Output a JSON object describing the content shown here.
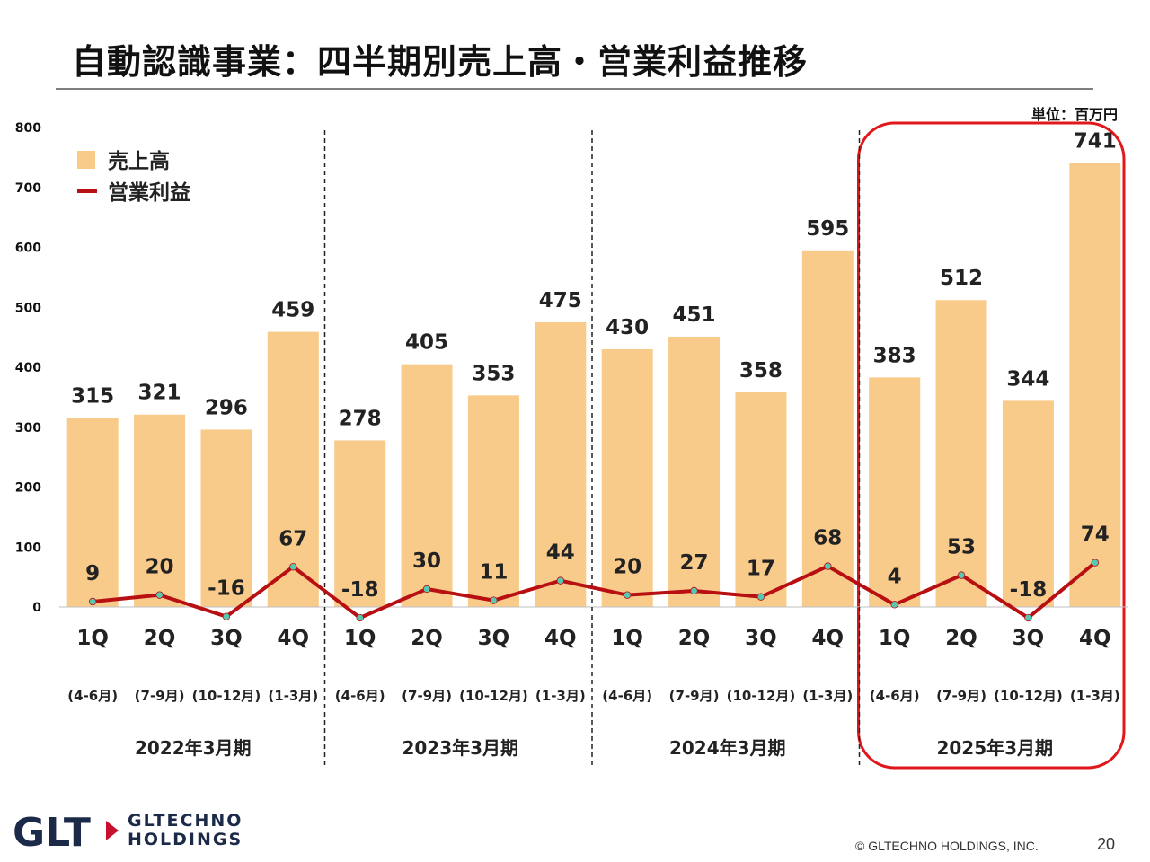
{
  "header": {
    "title": "自動認識事業：四半期別売上高・営業利益推移",
    "unit": "単位：百万円"
  },
  "footer": {
    "logo_mark": "GLT",
    "logo_line1": "GLTECHNO",
    "logo_line2": "HOLDINGS",
    "copyright": "© GLTECHNO HOLDINGS, INC.",
    "page_number": "20"
  },
  "colors": {
    "bar": "#f9cb8b",
    "line": "#b80f12",
    "marker": "#59c8b3",
    "highlight": "#e0181b",
    "logo_navy": "#1c2a4a",
    "logo_red": "#c8102e"
  },
  "chart_data": {
    "type": "bar",
    "title": "",
    "ylim": [
      0,
      800
    ],
    "yticks": [
      0,
      100,
      200,
      300,
      400,
      500,
      600,
      700,
      800
    ],
    "grid": false,
    "legend_position": "top-left",
    "categories": [
      "1Q",
      "2Q",
      "3Q",
      "4Q",
      "1Q",
      "2Q",
      "3Q",
      "4Q",
      "1Q",
      "2Q",
      "3Q",
      "4Q",
      "1Q",
      "2Q",
      "3Q",
      "4Q"
    ],
    "sub_labels": [
      "(4-6月)",
      "(7-9月)",
      "(10-12月)",
      "(1-3月)",
      "(4-6月)",
      "(7-9月)",
      "(10-12月)",
      "(1-3月)",
      "(4-6月)",
      "(7-9月)",
      "(10-12月)",
      "(1-3月)",
      "(4-6月)",
      "(7-9月)",
      "(10-12月)",
      "(1-3月)"
    ],
    "groups": [
      "2022年3月期",
      "2023年3月期",
      "2024年3月期",
      "2025年3月期"
    ],
    "highlighted_group": "2025年3月期",
    "series": [
      {
        "name": "売上高",
        "kind": "bar",
        "values": [
          315,
          321,
          296,
          459,
          278,
          405,
          353,
          475,
          430,
          451,
          358,
          595,
          383,
          512,
          344,
          741
        ]
      },
      {
        "name": "営業利益",
        "kind": "line",
        "values": [
          9,
          20,
          -16,
          67,
          -18,
          30,
          11,
          44,
          20,
          27,
          17,
          68,
          4,
          53,
          -18,
          74
        ]
      }
    ]
  }
}
